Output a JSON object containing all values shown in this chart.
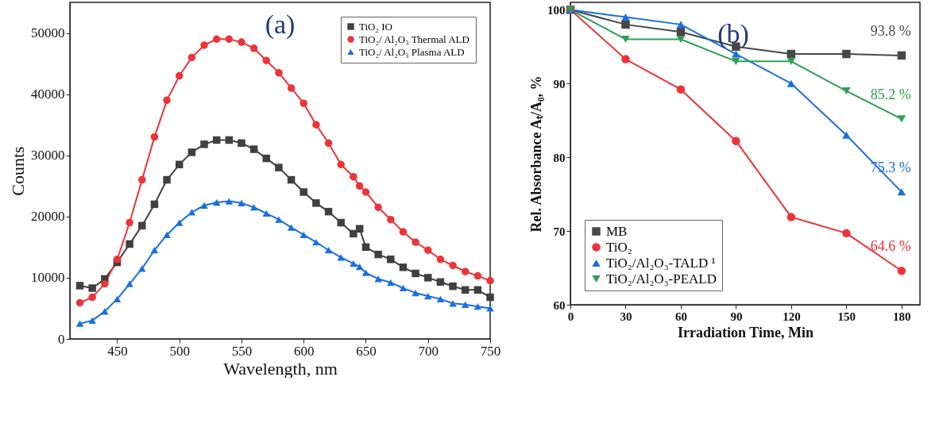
{
  "chart_data": [
    {
      "type": "line",
      "title": "(a)",
      "xlabel": "Wavelength, nm",
      "ylabel": "Counts",
      "xlim": [
        412,
        750
      ],
      "ylim": [
        0,
        55000
      ],
      "xticks": [
        450,
        500,
        550,
        600,
        650,
        700,
        750
      ],
      "yticks": [
        0,
        10000,
        20000,
        30000,
        40000,
        50000
      ],
      "legend": "top right",
      "x": [
        420,
        430,
        440,
        450,
        460,
        470,
        480,
        490,
        500,
        510,
        520,
        530,
        540,
        550,
        560,
        570,
        580,
        590,
        600,
        610,
        620,
        630,
        640,
        645,
        650,
        660,
        670,
        680,
        690,
        700,
        710,
        720,
        730,
        740,
        750
      ],
      "series": [
        {
          "name": "TiO₂ IO",
          "color": "#404040",
          "marker": "square",
          "values": [
            8700,
            8300,
            9800,
            12500,
            15500,
            18500,
            22000,
            26000,
            28500,
            30500,
            31800,
            32500,
            32500,
            32000,
            31000,
            29500,
            28000,
            26000,
            24000,
            22200,
            20800,
            19000,
            17200,
            18000,
            15000,
            13800,
            13000,
            11700,
            10700,
            10000,
            9300,
            8600,
            8000,
            8000,
            6800
          ]
        },
        {
          "name": "TiO₂/ Al₂O₃ Thermal ALD",
          "color": "#ee3338",
          "marker": "circle",
          "values": [
            5900,
            6800,
            9000,
            13000,
            19000,
            26000,
            33000,
            39000,
            43000,
            46000,
            48000,
            49000,
            49000,
            48500,
            47500,
            45500,
            43500,
            41000,
            38500,
            35000,
            32000,
            28500,
            26500,
            25000,
            24000,
            21500,
            19500,
            17500,
            15800,
            14500,
            13000,
            12000,
            11000,
            10300,
            9500
          ]
        },
        {
          "name": "TiO₂/ Al₂O₃ Plasma ALD",
          "color": "#1a6fe0",
          "marker": "triangle",
          "values": [
            2500,
            3000,
            4500,
            6500,
            9000,
            11500,
            14500,
            17000,
            19000,
            20700,
            21800,
            22300,
            22500,
            22200,
            21500,
            20500,
            19500,
            18200,
            17000,
            15800,
            14500,
            13300,
            12300,
            11800,
            10800,
            9800,
            9200,
            8300,
            7500,
            7000,
            6500,
            5800,
            5600,
            5300,
            5000
          ]
        }
      ]
    },
    {
      "type": "line",
      "title": "(b)",
      "xlabel": "Irradiation Time, Min",
      "ylabel": "Rel. Absorbance Aₜ/A₀, %",
      "xlim": [
        0,
        190
      ],
      "ylim": [
        60,
        101
      ],
      "xticks": [
        0,
        30,
        60,
        90,
        120,
        150,
        180
      ],
      "yticks": [
        60,
        70,
        80,
        90,
        100
      ],
      "legend": "bottom left",
      "x": [
        0,
        30,
        60,
        90,
        120,
        150,
        180
      ],
      "series": [
        {
          "name": "MB",
          "color": "#474747",
          "marker": "square",
          "values": [
            100,
            98,
            97,
            95,
            94,
            94,
            93.8
          ],
          "value_labels": [
            null,
            null,
            null,
            null,
            null,
            null,
            "93.8 %"
          ]
        },
        {
          "name": "TiO₂",
          "color": "#ee3338",
          "marker": "circle",
          "values": [
            100,
            93.3,
            89.2,
            82.2,
            71.9,
            69.7,
            64.6
          ],
          "value_labels": [
            null,
            null,
            null,
            null,
            null,
            null,
            "64.6 %"
          ]
        },
        {
          "name": "TiO₂/Al₂O₃-TALD ¹",
          "color": "#1a6fe0",
          "marker": "triangle",
          "values": [
            100,
            99,
            98,
            94,
            90,
            83,
            75.3
          ],
          "value_labels": [
            null,
            null,
            null,
            null,
            null,
            null,
            "75.3 %"
          ]
        },
        {
          "name": "TiO₂/Al₂O₃-PEALD",
          "color": "#2f9e55",
          "marker": "triangle",
          "values": [
            100,
            96,
            96,
            93,
            93,
            89,
            85.2
          ],
          "value_labels": [
            null,
            null,
            null,
            null,
            null,
            null,
            "85.2 %"
          ]
        }
      ]
    }
  ]
}
